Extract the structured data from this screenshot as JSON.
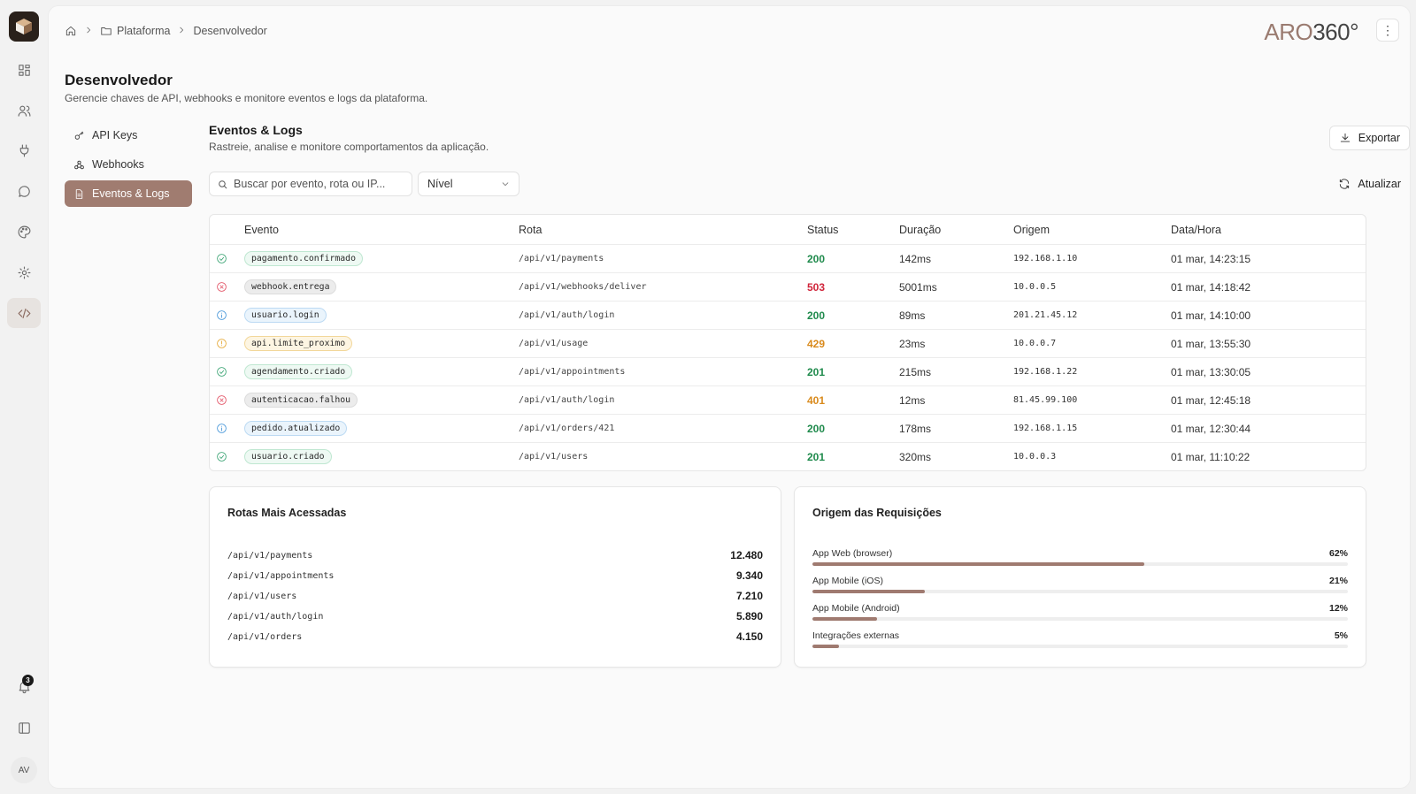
{
  "brand": {
    "prefix": "ARO",
    "suffix": "360°"
  },
  "breadcrumb": {
    "parent": "Plataforma",
    "current": "Desenvolvedor"
  },
  "page": {
    "title": "Desenvolvedor",
    "subtitle": "Gerencie chaves de API, webhooks e monitore eventos e logs da plataforma."
  },
  "sidebar": {
    "notification_count": "3",
    "avatar_initials": "AV"
  },
  "subnav": {
    "items": [
      {
        "label": "API Keys"
      },
      {
        "label": "Webhooks"
      },
      {
        "label": "Eventos & Logs"
      }
    ]
  },
  "section": {
    "title": "Eventos & Logs",
    "subtitle": "Rastreie, analise e monitore comportamentos da aplicação.",
    "export_label": "Exportar",
    "refresh_label": "Atualizar"
  },
  "filters": {
    "search_placeholder": "Buscar por evento, rota ou IP...",
    "level_label": "Nível"
  },
  "table": {
    "headers": {
      "event": "Evento",
      "route": "Rota",
      "status": "Status",
      "duration": "Duração",
      "origin": "Origem",
      "datetime": "Data/Hora"
    },
    "rows": [
      {
        "level": "success",
        "event": "pagamento.confirmado",
        "route": "/api/v1/payments",
        "status": "200",
        "duration": "142ms",
        "ip": "192.168.1.10",
        "datetime": "01 mar, 14:23:15"
      },
      {
        "level": "error",
        "event": "webhook.entrega",
        "route": "/api/v1/webhooks/deliver",
        "status": "503",
        "duration": "5001ms",
        "ip": "10.0.0.5",
        "datetime": "01 mar, 14:18:42"
      },
      {
        "level": "info",
        "event": "usuario.login",
        "route": "/api/v1/auth/login",
        "status": "200",
        "duration": "89ms",
        "ip": "201.21.45.12",
        "datetime": "01 mar, 14:10:00"
      },
      {
        "level": "warning",
        "event": "api.limite_proximo",
        "route": "/api/v1/usage",
        "status": "429",
        "duration": "23ms",
        "ip": "10.0.0.7",
        "datetime": "01 mar, 13:55:30"
      },
      {
        "level": "success",
        "event": "agendamento.criado",
        "route": "/api/v1/appointments",
        "status": "201",
        "duration": "215ms",
        "ip": "192.168.1.22",
        "datetime": "01 mar, 13:30:05"
      },
      {
        "level": "error",
        "event": "autenticacao.falhou",
        "route": "/api/v1/auth/login",
        "status": "401",
        "duration": "12ms",
        "ip": "81.45.99.100",
        "datetime": "01 mar, 12:45:18"
      },
      {
        "level": "info",
        "event": "pedido.atualizado",
        "route": "/api/v1/orders/421",
        "status": "200",
        "duration": "178ms",
        "ip": "192.168.1.15",
        "datetime": "01 mar, 12:30:44"
      },
      {
        "level": "success",
        "event": "usuario.criado",
        "route": "/api/v1/users",
        "status": "201",
        "duration": "320ms",
        "ip": "10.0.0.3",
        "datetime": "01 mar, 11:10:22"
      }
    ]
  },
  "top_routes": {
    "title": "Rotas Mais Acessadas",
    "items": [
      {
        "route": "/api/v1/payments",
        "count": "12.480"
      },
      {
        "route": "/api/v1/appointments",
        "count": "9.340"
      },
      {
        "route": "/api/v1/users",
        "count": "7.210"
      },
      {
        "route": "/api/v1/auth/login",
        "count": "5.890"
      },
      {
        "route": "/api/v1/orders",
        "count": "4.150"
      }
    ]
  },
  "request_origin": {
    "title": "Origem das Requisições",
    "items": [
      {
        "label": "App Web (browser)",
        "percent": "62%",
        "value": 62
      },
      {
        "label": "App Mobile (iOS)",
        "percent": "21%",
        "value": 21
      },
      {
        "label": "App Mobile (Android)",
        "percent": "12%",
        "value": 12
      },
      {
        "label": "Integrações externas",
        "percent": "5%",
        "value": 5
      }
    ]
  },
  "colors": {
    "accent": "#a07c70",
    "bar_fill": "#9f7a70",
    "status_success": "#1f8a4c",
    "status_error": "#d0243a",
    "status_warning": "#d98a1c",
    "level_success": "#2f9e6b",
    "level_error": "#e0465a",
    "level_info": "#3a8fd6",
    "level_warning": "#e3a227"
  },
  "icons": {
    "rail": [
      "grid-icon",
      "users-icon",
      "plug-icon",
      "chat-icon",
      "palette-icon",
      "gear-icon",
      "code-icon",
      "bell-icon",
      "panel-icon"
    ],
    "subnav": [
      "key-icon",
      "webhook-icon",
      "file-icon"
    ]
  }
}
